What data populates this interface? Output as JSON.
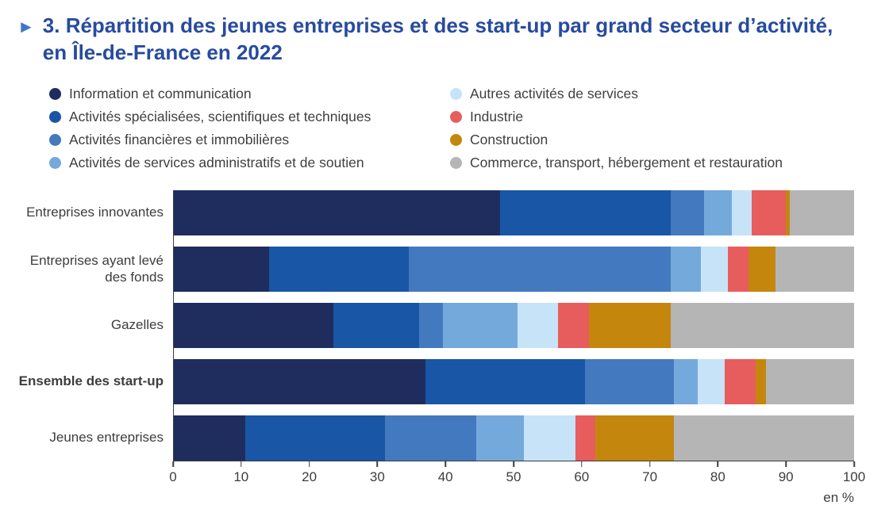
{
  "title": {
    "bullet": "►",
    "text": "3. Répartition des jeunes entreprises et des start-up par grand secteur d’activité, en Île-de-France en 2022"
  },
  "chart_data": {
    "type": "bar",
    "orientation": "horizontal",
    "stacked": true,
    "title": "Répartition des jeunes entreprises et des start-up par grand secteur d’activité, en Île-de-France en 2022",
    "unit": "en %",
    "xlim": [
      0,
      100
    ],
    "xticks": [
      0,
      10,
      20,
      30,
      40,
      50,
      60,
      70,
      80,
      90,
      100
    ],
    "grid": false,
    "legend_position": "top",
    "legend_columns": 2,
    "categories": [
      {
        "label": "Entreprises innovantes",
        "bold": false
      },
      {
        "label": "Entreprises ayant levé des fonds",
        "bold": false
      },
      {
        "label": "Gazelles",
        "bold": false
      },
      {
        "label": "Ensemble des start-up",
        "bold": true
      },
      {
        "label": "Jeunes entreprises",
        "bold": false
      }
    ],
    "series": [
      {
        "name": "Information et communication",
        "color": "#1f2c5e",
        "values": [
          48,
          14,
          23.5,
          37,
          10.5
        ]
      },
      {
        "name": "Activités spécialisées, scientifiques et techniques",
        "color": "#1956a5",
        "values": [
          25,
          20.5,
          12.5,
          23.5,
          20.5
        ]
      },
      {
        "name": "Activités financières et immobilières",
        "color": "#4379bf",
        "values": [
          5,
          38.5,
          3.5,
          13,
          13.5
        ]
      },
      {
        "name": "Activités de services administratifs et de soutien",
        "color": "#74a9db",
        "values": [
          4,
          4.5,
          11,
          3.5,
          7
        ]
      },
      {
        "name": "Autres activités de services",
        "color": "#c7e3f7",
        "values": [
          3,
          4,
          6,
          4,
          7.5
        ]
      },
      {
        "name": "Industrie",
        "color": "#e75d5e",
        "values": [
          5,
          3,
          4.5,
          4.5,
          3
        ]
      },
      {
        "name": "Construction",
        "color": "#c5860e",
        "values": [
          0.5,
          4,
          12,
          1.5,
          11.5
        ]
      },
      {
        "name": "Commerce, transport, hébergement et restauration",
        "color": "#b5b5b6",
        "values": [
          9.5,
          11.5,
          27,
          13,
          26.5
        ]
      }
    ]
  }
}
